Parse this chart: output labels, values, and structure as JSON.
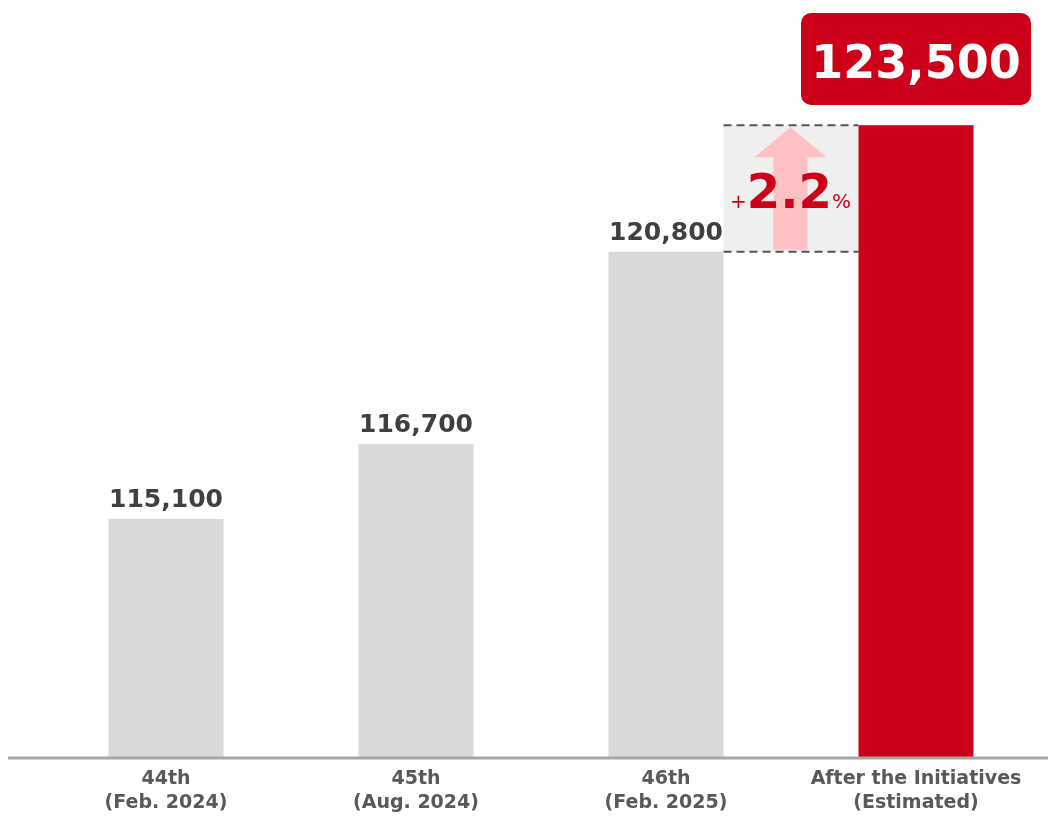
{
  "chart_data": {
    "type": "bar",
    "categories": [
      "44th\n(Feb. 2024)",
      "45th\n(Aug. 2024)",
      "46th\n(Feb. 2025)",
      "After the Initiatives\n(Estimated)"
    ],
    "values": [
      115100,
      116700,
      120800,
      123500
    ],
    "value_labels": [
      "115,100",
      "116,700",
      "120,800",
      "123,500"
    ],
    "colors": [
      "#d9d9d9",
      "#d9d9d9",
      "#d9d9d9",
      "#cc0018"
    ],
    "ylim": [
      110000,
      126000
    ],
    "bands": [
      {
        "axis": "y",
        "from": 120800,
        "to": 123500,
        "color": "#efefef"
      }
    ],
    "annotations": [
      "+2.2%"
    ]
  }
}
